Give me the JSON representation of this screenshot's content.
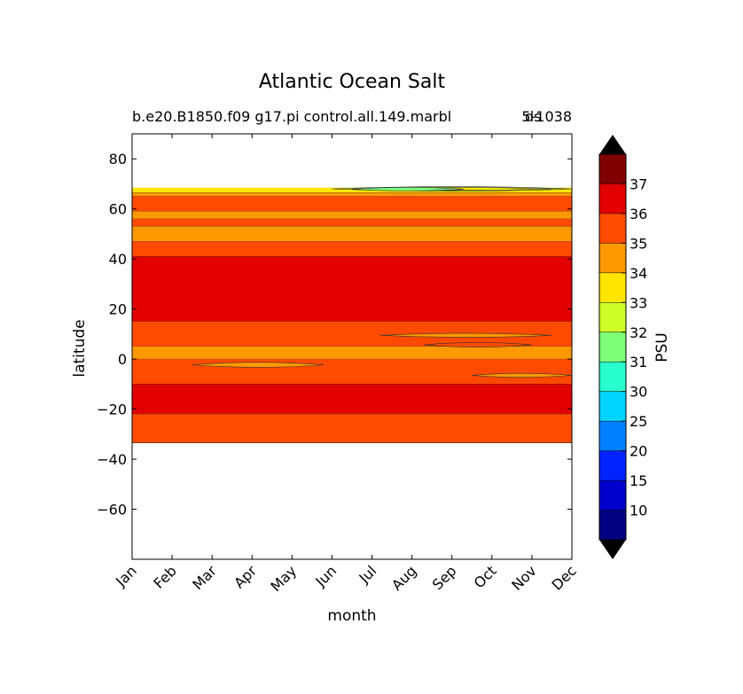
{
  "chart_data": {
    "type": "heatmap",
    "title": "Atlantic Ocean Salt",
    "subtitle_left": "b.e20.B1850.f09 g17.pi control.all.149.marbl",
    "subtitle_right": "5-1038",
    "subtitle_overlap": "ds",
    "xlabel": "month",
    "ylabel": "latitude",
    "colorbar_label": "PSU",
    "x_categories": [
      "Jan",
      "Feb",
      "Mar",
      "Apr",
      "May",
      "Jun",
      "Jul",
      "Aug",
      "Sep",
      "Oct",
      "Nov",
      "Dec"
    ],
    "y_ticks": [
      80,
      60,
      40,
      20,
      0,
      -20,
      -40,
      -60
    ],
    "y_tick_labels": [
      "80",
      "60",
      "40",
      "20",
      "0",
      "−20",
      "−40",
      "−60"
    ],
    "ylim": [
      -80,
      90
    ],
    "colorbar_levels": [
      "10",
      "15",
      "20",
      "25",
      "30",
      "31",
      "32",
      "33",
      "34",
      "35",
      "36",
      "37"
    ],
    "colorbar_colors": [
      "#000080",
      "#0000cd",
      "#0022ff",
      "#0080ff",
      "#00d4ff",
      "#29ffce",
      "#7dff7a",
      "#ceff29",
      "#ffe600",
      "#ff9900",
      "#ff4a00",
      "#e30000",
      "#800000"
    ],
    "extend": "both",
    "bands": [
      {
        "lat_top": 68.5,
        "lat_bottom": 66.5,
        "salinity_class": "33-34",
        "color": "#ffe600"
      },
      {
        "lat_top": 66.5,
        "lat_bottom": 65,
        "salinity_class": "34-35",
        "color": "#ff9900"
      },
      {
        "lat_top": 65,
        "lat_bottom": 59,
        "salinity_class": "35-36",
        "color": "#ff4a00"
      },
      {
        "lat_top": 59,
        "lat_bottom": 56,
        "salinity_class": "34-35",
        "color": "#ff9900"
      },
      {
        "lat_top": 56,
        "lat_bottom": 53,
        "salinity_class": "35-36",
        "color": "#ff4a00"
      },
      {
        "lat_top": 53,
        "lat_bottom": 47,
        "salinity_class": "34-35",
        "color": "#ff9900"
      },
      {
        "lat_top": 47,
        "lat_bottom": 41,
        "salinity_class": "35-36",
        "color": "#ff4a00"
      },
      {
        "lat_top": 41,
        "lat_bottom": 15,
        "salinity_class": ">36",
        "color": "#e30000"
      },
      {
        "lat_top": 15,
        "lat_bottom": 5,
        "salinity_class": "35-36",
        "color": "#ff4a00"
      },
      {
        "lat_top": 5,
        "lat_bottom": 0,
        "salinity_class": "34-35",
        "color": "#ff9900"
      },
      {
        "lat_top": 0,
        "lat_bottom": -10,
        "salinity_class": "35-36",
        "color": "#ff4a00"
      },
      {
        "lat_top": -10,
        "lat_bottom": -22,
        "salinity_class": ">36",
        "color": "#e30000"
      },
      {
        "lat_top": -22,
        "lat_bottom": -33.5,
        "salinity_class": "35-36",
        "color": "#ff4a00"
      }
    ],
    "features": [
      {
        "month_start": 5,
        "month_end": 11,
        "lat_center": 68,
        "lat_half": 0.9,
        "color": "#ceff29"
      },
      {
        "month_start": 5.5,
        "month_end": 10.5,
        "lat_center": 68,
        "lat_half": 0.6,
        "color": "#ffe600"
      },
      {
        "month_start": 5.5,
        "month_end": 8.3,
        "lat_center": 67.9,
        "lat_half": 0.7,
        "color": "#7dff7a"
      },
      {
        "month_start": 1.5,
        "month_end": 4.8,
        "lat_center": -2.3,
        "lat_half": 1.0,
        "color": "#ff9900"
      },
      {
        "month_start": 6.2,
        "month_end": 10.5,
        "lat_center": 9.5,
        "lat_half": 0.8,
        "color": "#ff9900"
      },
      {
        "month_start": 7.3,
        "month_end": 10.0,
        "lat_center": 5.7,
        "lat_half": 0.9,
        "color": "#ff4a00"
      },
      {
        "month_start": 8.5,
        "month_end": 11,
        "lat_center": -6.5,
        "lat_half": 0.8,
        "color": "#ff9900"
      }
    ]
  }
}
